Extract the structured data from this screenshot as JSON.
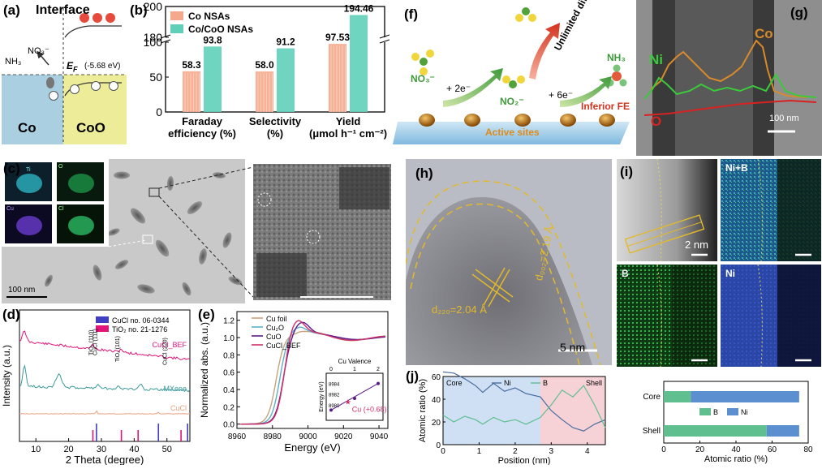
{
  "panels": {
    "a": {
      "label": "(a)",
      "title": "Interface",
      "nitrate": "NO₃⁻",
      "ammonia": "NH₃",
      "ef_label": "E",
      "ef_sub": "F",
      "ef_value": "(-5.68 eV)",
      "left_region": "Co",
      "right_region": "CoO",
      "electron": "e",
      "hole": "h"
    },
    "b": {
      "label": "(b)"
    },
    "c": {
      "label": "(c)",
      "scale": "100 nm",
      "maps": [
        "Ti",
        "O",
        "Cu",
        "Cl"
      ]
    },
    "d": {
      "label": "(d)"
    },
    "e": {
      "label": "(e)"
    },
    "f": {
      "label": "(f)",
      "no3": "NO₃⁻",
      "step1": "+ 2e⁻",
      "no2": "NO₂⁻",
      "step2": "+ 6e⁻",
      "nh3": "NH₃",
      "diffusion": "Unlimited diffusion",
      "fe": "Inferior FE",
      "sites": "Active sites"
    },
    "g": {
      "label": "(g)",
      "co": "Co",
      "ni": "Ni",
      "o": "O",
      "scale": "100 nm"
    },
    "h": {
      "label": "(h)",
      "d002": "d₀₀₂=2.19 Å",
      "d220": "d₂₂₀=2.04 Å",
      "scale": "5 nm"
    },
    "i": {
      "label": "(i)",
      "nib": "Ni+B",
      "b": "B",
      "ni": "Ni",
      "scale": "2 nm"
    },
    "j": {
      "label": "(j)"
    }
  },
  "chart_data": [
    {
      "panel": "b",
      "type": "bar",
      "categories": [
        "Faraday efficiency (%)",
        "Selectivity (%)",
        "Yield (μmol h⁻¹ cm⁻²)"
      ],
      "category_lines": [
        [
          "Faraday",
          "efficiency (%)"
        ],
        [
          "Selectivity",
          "(%)"
        ],
        [
          "Yield",
          "(μmol h⁻¹ cm⁻²)"
        ]
      ],
      "series": [
        {
          "name": "Co NSAs",
          "values": [
            58.3,
            58.0,
            97.53
          ],
          "labels": [
            "58.3",
            "58.0",
            "97.53"
          ],
          "color": "#f5a98c"
        },
        {
          "name": "Co/CoO NSAs",
          "values": [
            93.8,
            91.2,
            194.46
          ],
          "labels": [
            "93.8",
            "91.2",
            "194.46"
          ],
          "color": "#5fcfb9"
        }
      ],
      "yticks_lower": [
        "0",
        "50",
        "100"
      ],
      "yticks_upper": [
        "180",
        "200"
      ],
      "axis_break": [
        100,
        180
      ],
      "ylim": [
        0,
        200
      ]
    },
    {
      "panel": "d",
      "type": "line",
      "xlabel": "2 Theta (degree)",
      "ylabel": "Intensity (a.u.)",
      "xlim": [
        5,
        57
      ],
      "xticks": [
        "10",
        "20",
        "30",
        "40",
        "50"
      ],
      "legend": [
        {
          "name": "CuCl no. 06-0344",
          "color": "#3f3fbf"
        },
        {
          "name": "TiO₂ no. 21-1276",
          "color": "#e0147a"
        }
      ],
      "series": [
        {
          "name": "CuCl_BEF",
          "color": "#e0147a"
        },
        {
          "name": "MXene",
          "color": "#3c9a9a"
        },
        {
          "name": "CuCl",
          "color": "#e8a080"
        }
      ],
      "peak_labels": [
        "TiO₂ (110)",
        "CuCl (111)",
        "TiO₂ (101)",
        "CuCl (220)"
      ],
      "ref_cucl": [
        28.5,
        47.4,
        56.3
      ],
      "ref_tio2": [
        27.4,
        36.1,
        41.2,
        54.3
      ]
    },
    {
      "panel": "e",
      "type": "line",
      "xlabel": "Energy (eV)",
      "ylabel": "Normalized abs. (a.u.)",
      "xlim": [
        8960,
        9045
      ],
      "ylim": [
        -0.05,
        1.3
      ],
      "xticks": [
        "8960",
        "8980",
        "9000",
        "9020",
        "9040"
      ],
      "yticks": [
        "0.0",
        "0.2",
        "0.4",
        "0.6",
        "0.8",
        "1.0",
        "1.2"
      ],
      "series": [
        {
          "name": "Cu foil",
          "color": "#c9a37a"
        },
        {
          "name": "Cu₂O",
          "color": "#5bb0c8"
        },
        {
          "name": "CuO",
          "color": "#5a1a8a"
        },
        {
          "name": "CuCl_BEF",
          "color": "#d0306a"
        }
      ],
      "inset": {
        "xlabel": "Cu Valence",
        "ylabel": "Energy (eV)",
        "xticks": [
          "0",
          "1",
          "2"
        ],
        "yticks": [
          "8980",
          "8982",
          "8984"
        ],
        "points": [
          [
            0,
            8979.0
          ],
          [
            1,
            8981.2
          ],
          [
            2,
            8984.0
          ]
        ],
        "highlight": {
          "x": 0.68,
          "y": 8980.5,
          "label": "Cu (+0.68)"
        }
      }
    },
    {
      "panel": "j-line",
      "type": "line",
      "xlabel": "Position (nm)",
      "ylabel": "Atomic ratio (%)",
      "xlim": [
        0,
        4.5
      ],
      "ylim": [
        0,
        60
      ],
      "xticks": [
        "0",
        "1",
        "2",
        "3",
        "4"
      ],
      "yticks": [
        "0",
        "20",
        "40",
        "60"
      ],
      "regions": [
        "Core",
        "Shell"
      ],
      "series": [
        {
          "name": "Ni",
          "color": "#4a6fa0",
          "x": [
            0,
            0.3,
            0.6,
            0.9,
            1.1,
            1.4,
            1.7,
            2.0,
            2.3,
            2.7,
            3.0,
            3.3,
            3.6,
            3.9,
            4.2,
            4.5
          ],
          "values": [
            64,
            63,
            58,
            52,
            46,
            54,
            47,
            50,
            45,
            42,
            30,
            22,
            15,
            12,
            18,
            22
          ]
        },
        {
          "name": "B",
          "color": "#5fbf8f",
          "x": [
            0,
            0.3,
            0.6,
            0.9,
            1.1,
            1.4,
            1.7,
            2.0,
            2.3,
            2.7,
            3.0,
            3.3,
            3.6,
            3.9,
            4.2,
            4.5
          ],
          "values": [
            26,
            20,
            25,
            22,
            18,
            24,
            20,
            22,
            18,
            24,
            35,
            48,
            42,
            52,
            35,
            15
          ]
        }
      ]
    },
    {
      "panel": "j-bar",
      "type": "bar",
      "xlabel": "Atomic ratio (%)",
      "xlim": [
        0,
        80
      ],
      "xticks": [
        "0",
        "20",
        "40",
        "60",
        "80"
      ],
      "categories": [
        "Core",
        "Shell"
      ],
      "series": [
        {
          "name": "B",
          "values": [
            15,
            57
          ],
          "color": "#5fbf8f"
        },
        {
          "name": "Ni",
          "values": [
            60,
            18
          ],
          "color": "#5b8fcf"
        }
      ]
    }
  ]
}
